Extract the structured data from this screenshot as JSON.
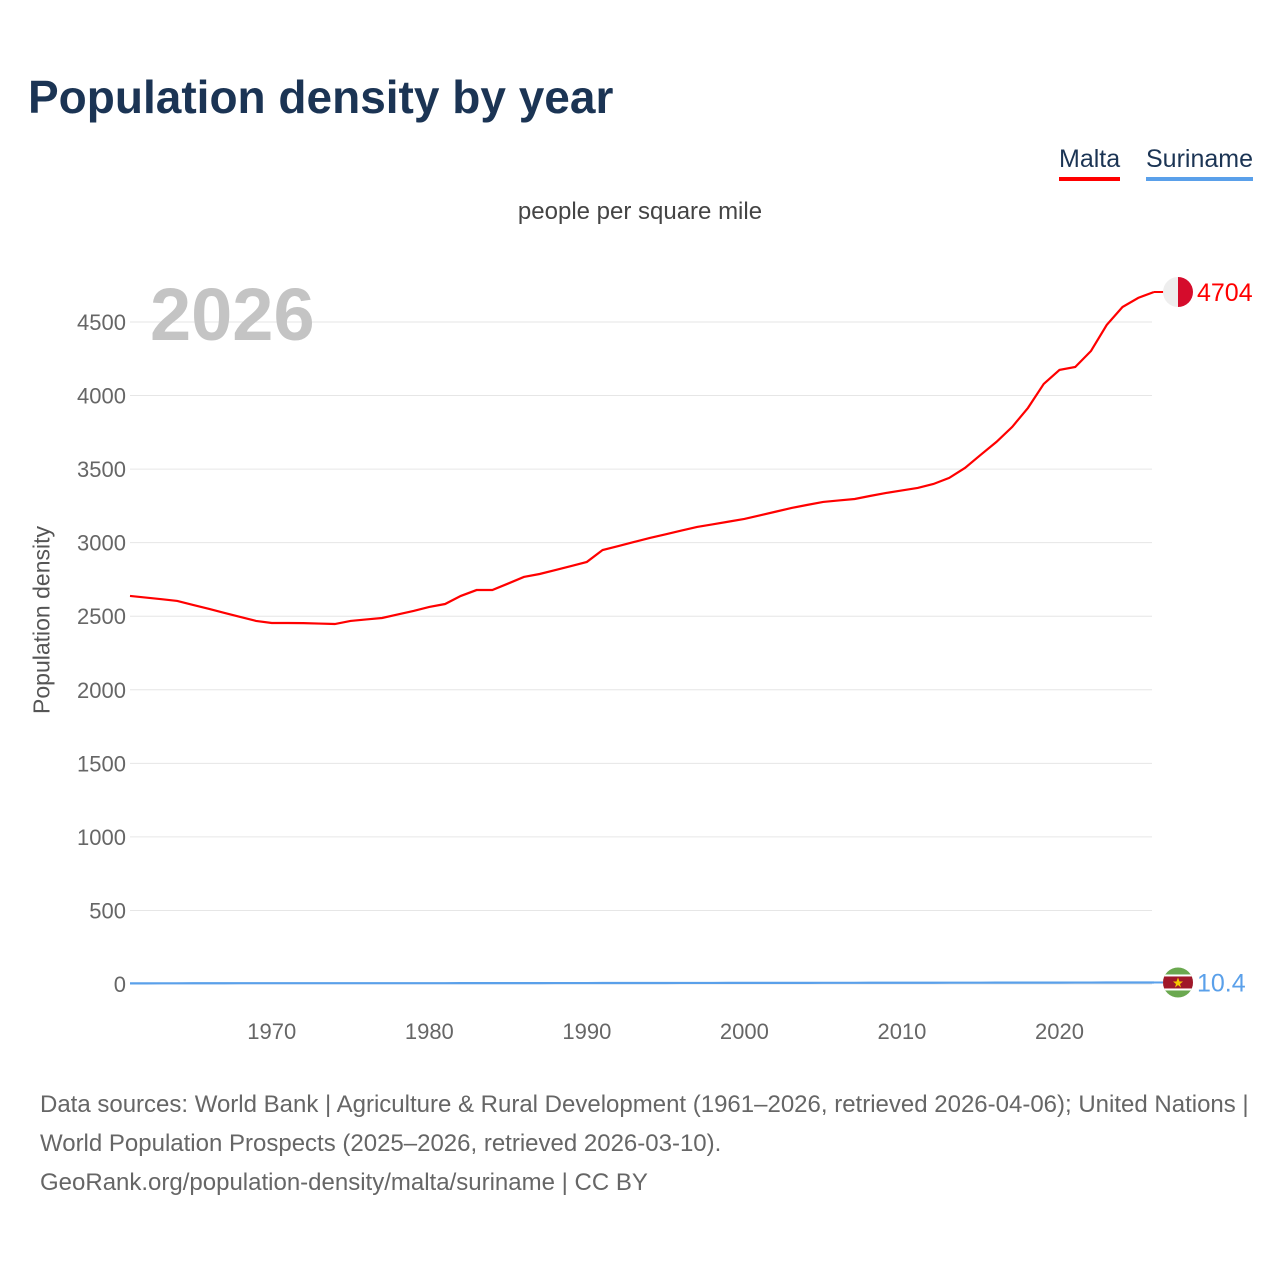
{
  "title": "Population density by year",
  "legend": [
    {
      "label": "Malta",
      "color": "#ff0000"
    },
    {
      "label": "Suriname",
      "color": "#5aa0ea"
    }
  ],
  "footer": {
    "line1": "Data sources: World Bank | Agriculture & Rural Development (1961–2026, retrieved 2026-04-06); United Nations | World Population Prospects (2025–2026, retrieved 2026-03-10).",
    "line2": "GeoRank.org/population-density/malta/suriname | CC BY"
  },
  "chart_data": {
    "type": "line",
    "title": "Population density by year",
    "subtitle": "people per square mile",
    "current_year_label": "2026",
    "xlabel": "",
    "ylabel": "Population density",
    "xlim": [
      1961,
      2026
    ],
    "ylim": [
      0,
      4500
    ],
    "yticks": [
      0,
      500,
      1000,
      1500,
      2000,
      2500,
      3000,
      3500,
      4000,
      4500
    ],
    "xticks": [
      1970,
      1980,
      1990,
      2000,
      2010,
      2020
    ],
    "grid": true,
    "legend_position": "top-right",
    "x_start": 1961,
    "series": [
      {
        "name": "Malta",
        "color": "#ff0000",
        "end_label": "4704",
        "flag": "malta-flag",
        "values": [
          2638,
          2627,
          2616,
          2604,
          2577,
          2550,
          2522,
          2495,
          2468,
          2454,
          2454,
          2453,
          2450,
          2447,
          2468,
          2478,
          2488,
          2512,
          2536,
          2563,
          2583,
          2638,
          2678,
          2678,
          2722,
          2767,
          2787,
          2814,
          2841,
          2869,
          2950,
          2977,
          3005,
          3032,
          3057,
          3082,
          3107,
          3125,
          3143,
          3161,
          3186,
          3211,
          3236,
          3257,
          3277,
          3287,
          3297,
          3318,
          3338,
          3355,
          3372,
          3399,
          3440,
          3508,
          3597,
          3685,
          3787,
          3916,
          4079,
          4174,
          4194,
          4303,
          4480,
          4602,
          4664,
          4704
        ]
      },
      {
        "name": "Suriname",
        "color": "#5aa0ea",
        "end_label": "10.4",
        "flag": "suriname-flag",
        "values": [
          4.4,
          4.5,
          4.7,
          4.8,
          5.0,
          5.1,
          5.3,
          5.4,
          5.5,
          5.6,
          5.6,
          5.6,
          5.6,
          5.6,
          5.5,
          5.5,
          5.5,
          5.5,
          5.5,
          5.6,
          5.6,
          5.7,
          5.8,
          5.9,
          6.0,
          6.1,
          6.2,
          6.3,
          6.4,
          6.5,
          6.6,
          6.7,
          6.8,
          6.9,
          7.0,
          7.1,
          7.2,
          7.3,
          7.4,
          7.5,
          7.6,
          7.7,
          7.8,
          7.9,
          8.0,
          8.1,
          8.2,
          8.3,
          8.4,
          8.5,
          8.6,
          8.7,
          8.8,
          8.9,
          9.0,
          9.1,
          9.2,
          9.3,
          9.4,
          9.6,
          9.7,
          9.8,
          10.0,
          10.1,
          10.3,
          10.4
        ]
      }
    ]
  }
}
